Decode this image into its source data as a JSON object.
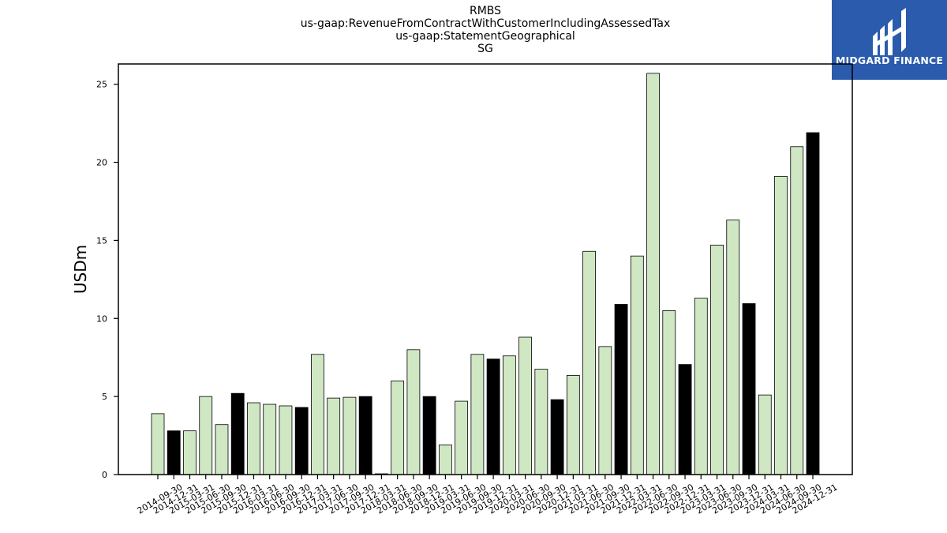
{
  "title_lines": [
    "RMBS",
    "us-gaap:RevenueFromContractWithCustomerIncludingAssessedTax",
    "us-gaap:StatementGeographical",
    "SG"
  ],
  "logo": {
    "text": "MIDGARD FINANCE",
    "background": "#2a5bad"
  },
  "chart_data": {
    "type": "bar",
    "ylabel": "USDm",
    "xlabel": "",
    "ylim": [
      0,
      26.3
    ],
    "yticks": [
      0,
      5,
      10,
      15,
      20,
      25
    ],
    "grid": false,
    "colors": {
      "quarter": "#cfe8c3",
      "year_end": "#000000",
      "edge": "#000000"
    },
    "categories": [
      "2014-09-30",
      "2014-12-31",
      "2015-03-31",
      "2015-06-30",
      "2015-09-30",
      "2015-12-31",
      "2016-03-31",
      "2016-06-30",
      "2016-09-30",
      "2016-12-31",
      "2017-03-31",
      "2017-06-30",
      "2017-09-30",
      "2017-12-31",
      "2018-03-31",
      "2018-06-30",
      "2018-09-30",
      "2018-12-31",
      "2019-03-31",
      "2019-06-30",
      "2019-09-30",
      "2019-12-31",
      "2020-03-31",
      "2020-06-30",
      "2020-09-30",
      "2020-12-31",
      "2021-03-31",
      "2021-06-30",
      "2021-09-30",
      "2021-12-31",
      "2022-03-31",
      "2022-06-30",
      "2022-09-30",
      "2022-12-31",
      "2023-03-31",
      "2023-06-30",
      "2023-09-30",
      "2023-12-31",
      "2024-03-31",
      "2024-06-30",
      "2024-09-30",
      "2024-12-31"
    ],
    "values": [
      3.9,
      2.8,
      2.8,
      5.0,
      3.2,
      5.2,
      4.6,
      4.5,
      4.4,
      4.3,
      7.7,
      4.9,
      4.95,
      5.0,
      0.05,
      6.0,
      8.0,
      5.0,
      1.9,
      4.7,
      7.7,
      7.4,
      7.6,
      8.8,
      6.75,
      4.8,
      6.35,
      14.3,
      8.2,
      10.9,
      14.0,
      25.7,
      10.5,
      7.05,
      11.3,
      14.7,
      16.3,
      10.95,
      5.1,
      19.1,
      21.0,
      21.9
    ]
  }
}
